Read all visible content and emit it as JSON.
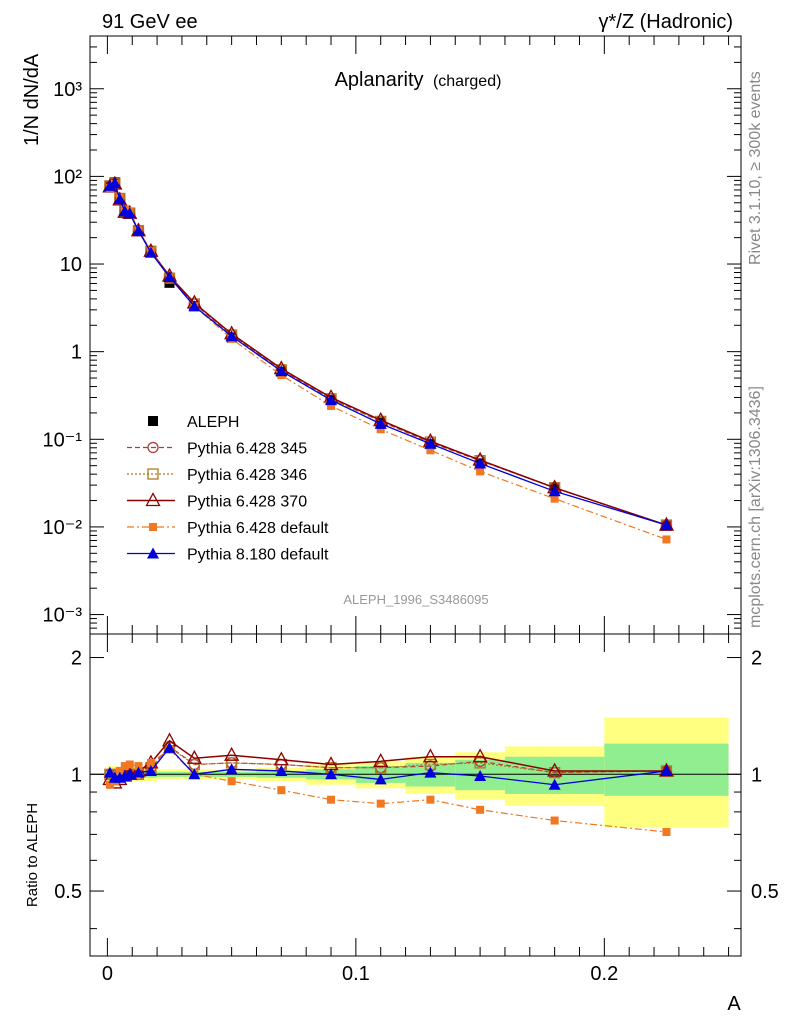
{
  "header": {
    "left": "91 GeV ee",
    "right": "γ*/Z (Hadronic)"
  },
  "side_labels": {
    "rivet": "Rivet 3.1.10, ≥ 300k events",
    "mcplots": "mcplots.cern.ch [arXiv:1306.3436]"
  },
  "colors": {
    "data": "#000000",
    "p345": "#b03a3a",
    "p346": "#b07820",
    "p370": "#8b0000",
    "p6def": "#f07820",
    "p8def": "#0000dd",
    "band_yellow": "#ffff80",
    "band_green": "#90ee90"
  },
  "chart_data": {
    "type": "line",
    "title": "Aplanarity",
    "title_suffix": "(charged)",
    "watermark": "ALEPH_1996_S3486095",
    "xlabel": "A",
    "ylabel": "1/N dN/dA",
    "ratio_ylabel": "Ratio to ALEPH",
    "xlim": [
      -0.007,
      0.255
    ],
    "ylim": [
      0.0006,
      4000
    ],
    "yscale": "log",
    "ratio_ylim": [
      0.34,
      2.3
    ],
    "x_ticks": [
      "0",
      "0.1",
      "0.2"
    ],
    "y_ticks": [
      "10⁻³",
      "10⁻²",
      "10⁻¹",
      "1",
      "10",
      "10²",
      "10³"
    ],
    "ratio_ticks": [
      "0.5",
      "1",
      "2"
    ],
    "legend_position": "lower-left",
    "x": [
      0.001,
      0.003,
      0.005,
      0.007,
      0.009,
      0.0125,
      0.0175,
      0.025,
      0.035,
      0.05,
      0.07,
      0.09,
      0.11,
      0.13,
      0.15,
      0.18,
      0.225
    ],
    "series": [
      {
        "name": "ALEPH",
        "key": "data",
        "values": [
          78,
          86,
          56,
          40,
          38,
          24,
          13.5,
          6.1,
          3.3,
          1.45,
          0.59,
          0.28,
          0.155,
          0.088,
          0.053,
          0.0275,
          0.0103
        ],
        "ratio": [
          1,
          1,
          1,
          1,
          1,
          1,
          1,
          1,
          1,
          1,
          1,
          1,
          1,
          1,
          1,
          1,
          1
        ]
      },
      {
        "name": "Pythia 6.428 345",
        "key": "p345",
        "values": [
          78,
          84,
          56,
          40,
          38,
          24,
          14,
          7.0,
          3.5,
          1.55,
          0.62,
          0.29,
          0.16,
          0.092,
          0.057,
          0.028,
          0.0105
        ],
        "ratio": [
          1.0,
          0.98,
          1.0,
          1.0,
          1.0,
          1.0,
          1.04,
          1.18,
          1.06,
          1.07,
          1.06,
          1.04,
          1.04,
          1.05,
          1.08,
          1.01,
          1.02
        ]
      },
      {
        "name": "Pythia 6.428 346",
        "key": "p346",
        "values": [
          78,
          84,
          56,
          40,
          38,
          24,
          14,
          6.9,
          3.5,
          1.55,
          0.62,
          0.29,
          0.16,
          0.093,
          0.057,
          0.028,
          0.0105
        ],
        "ratio": [
          1.0,
          0.98,
          1.0,
          1.0,
          1.0,
          1.0,
          1.04,
          1.17,
          1.06,
          1.07,
          1.06,
          1.04,
          1.04,
          1.06,
          1.07,
          1.01,
          1.02
        ]
      },
      {
        "name": "Pythia 6.428 370",
        "key": "p370",
        "values": [
          76,
          82,
          54,
          39,
          38,
          24,
          14,
          7.3,
          3.6,
          1.6,
          0.64,
          0.3,
          0.165,
          0.095,
          0.058,
          0.028,
          0.0105
        ],
        "ratio": [
          0.97,
          0.95,
          0.97,
          0.99,
          1.0,
          1.02,
          1.07,
          1.22,
          1.1,
          1.12,
          1.09,
          1.06,
          1.08,
          1.11,
          1.11,
          1.02,
          1.02
        ]
      },
      {
        "name": "Pythia 6.428 default",
        "key": "p6def",
        "values": [
          74,
          82,
          57,
          42,
          40,
          24.5,
          14,
          7.0,
          3.3,
          1.4,
          0.54,
          0.24,
          0.13,
          0.075,
          0.043,
          0.021,
          0.0072
        ],
        "ratio": [
          0.94,
          0.96,
          1.02,
          1.05,
          1.06,
          1.05,
          1.07,
          1.16,
          1.0,
          0.96,
          0.91,
          0.86,
          0.84,
          0.86,
          0.81,
          0.76,
          0.71
        ]
      },
      {
        "name": "Pythia 8.180 default",
        "key": "p8def",
        "values": [
          78,
          84,
          55,
          40,
          38,
          24,
          13.5,
          7.1,
          3.3,
          1.5,
          0.6,
          0.28,
          0.15,
          0.089,
          0.053,
          0.0255,
          0.0105
        ],
        "ratio": [
          1.01,
          0.98,
          0.98,
          0.99,
          1.0,
          1.01,
          1.02,
          1.17,
          1.0,
          1.03,
          1.02,
          1.0,
          0.97,
          1.01,
          0.99,
          0.94,
          1.02
        ]
      }
    ],
    "uncertainty_bands": [
      {
        "x": [
          0.0,
          0.004
        ],
        "green": [
          0.97,
          1.03
        ],
        "yellow": [
          0.95,
          1.05
        ]
      },
      {
        "x": [
          0.004,
          0.02
        ],
        "green": [
          0.98,
          1.02
        ],
        "yellow": [
          0.96,
          1.04
        ]
      },
      {
        "x": [
          0.02,
          0.06
        ],
        "green": [
          0.985,
          1.015
        ],
        "yellow": [
          0.97,
          1.03
        ]
      },
      {
        "x": [
          0.06,
          0.08
        ],
        "green": [
          0.98,
          1.02
        ],
        "yellow": [
          0.96,
          1.04
        ]
      },
      {
        "x": [
          0.08,
          0.1
        ],
        "green": [
          0.97,
          1.03
        ],
        "yellow": [
          0.94,
          1.06
        ]
      },
      {
        "x": [
          0.1,
          0.12
        ],
        "green": [
          0.95,
          1.05
        ],
        "yellow": [
          0.92,
          1.08
        ]
      },
      {
        "x": [
          0.12,
          0.14
        ],
        "green": [
          0.93,
          1.07
        ],
        "yellow": [
          0.89,
          1.11
        ]
      },
      {
        "x": [
          0.14,
          0.16
        ],
        "green": [
          0.91,
          1.09
        ],
        "yellow": [
          0.86,
          1.14
        ]
      },
      {
        "x": [
          0.16,
          0.2
        ],
        "green": [
          0.89,
          1.11
        ],
        "yellow": [
          0.83,
          1.18
        ]
      },
      {
        "x": [
          0.2,
          0.25
        ],
        "green": [
          0.88,
          1.2
        ],
        "yellow": [
          0.73,
          1.4
        ]
      }
    ]
  }
}
